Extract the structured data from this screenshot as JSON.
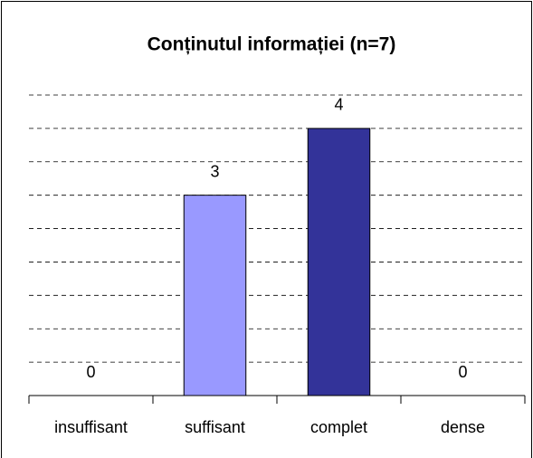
{
  "chart_data": {
    "type": "bar",
    "title": "Conținutul informației (n=7)",
    "categories": [
      "insuffisant",
      "suffisant",
      "complet",
      "dense"
    ],
    "values": [
      0,
      3,
      4,
      0
    ],
    "colors": [
      "#9999ff",
      "#9999ff",
      "#333399",
      "#333399"
    ],
    "ylim": [
      0,
      4.5
    ],
    "yticks": [
      0,
      0.5,
      1,
      1.5,
      2,
      2.5,
      3,
      3.5,
      4,
      4.5
    ],
    "grid": true
  }
}
